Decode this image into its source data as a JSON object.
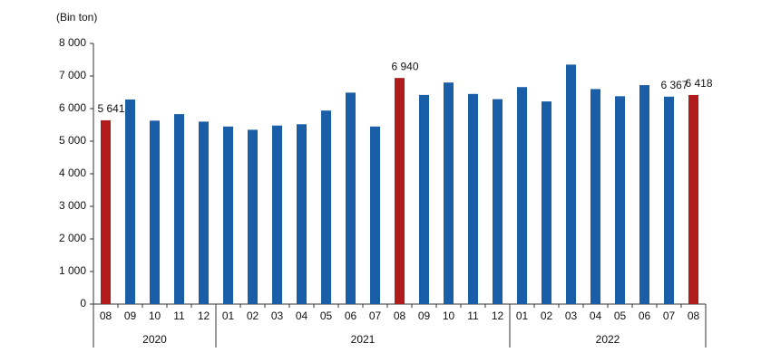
{
  "chart_data": {
    "type": "bar",
    "y_label": "(Bin ton)",
    "groups": [
      {
        "label": "2020",
        "categories": [
          "08",
          "09",
          "10",
          "11",
          "12"
        ]
      },
      {
        "label": "2021",
        "categories": [
          "01",
          "02",
          "03",
          "04",
          "05",
          "06",
          "07",
          "08",
          "09",
          "10",
          "11",
          "12"
        ]
      },
      {
        "label": "2022",
        "categories": [
          "01",
          "02",
          "03",
          "04",
          "05",
          "06",
          "07",
          "08"
        ]
      }
    ],
    "values": [
      5641,
      6280,
      5630,
      5830,
      5600,
      5450,
      5350,
      5480,
      5520,
      5940,
      6490,
      5450,
      6940,
      6420,
      6800,
      6450,
      6290,
      6660,
      6220,
      7350,
      6600,
      6380,
      6720,
      6367,
      6418
    ],
    "value_labels": [
      "5 641",
      null,
      null,
      null,
      null,
      null,
      null,
      null,
      null,
      null,
      null,
      null,
      "6 940",
      null,
      null,
      null,
      null,
      null,
      null,
      null,
      null,
      null,
      null,
      "6 367",
      "6 418"
    ],
    "colors": [
      "#b01c1c",
      "#1b5ea8",
      "#1b5ea8",
      "#1b5ea8",
      "#1b5ea8",
      "#1b5ea8",
      "#1b5ea8",
      "#1b5ea8",
      "#1b5ea8",
      "#1b5ea8",
      "#1b5ea8",
      "#1b5ea8",
      "#b01c1c",
      "#1b5ea8",
      "#1b5ea8",
      "#1b5ea8",
      "#1b5ea8",
      "#1b5ea8",
      "#1b5ea8",
      "#1b5ea8",
      "#1b5ea8",
      "#1b5ea8",
      "#1b5ea8",
      "#1b5ea8",
      "#b01c1c"
    ],
    "ylim": [
      0,
      8000
    ],
    "yticks": [
      0,
      {
        "value": 1000,
        "label": "1 000"
      },
      {
        "value": 2000,
        "label": "2 000"
      },
      {
        "value": 3000,
        "label": "3 000"
      },
      {
        "value": 4000,
        "label": "4 000"
      },
      {
        "value": 5000,
        "label": "5 000"
      },
      {
        "value": 6000,
        "label": "6 000"
      },
      {
        "value": 7000,
        "label": "7 000"
      },
      {
        "value": 8000,
        "label": "8 000"
      }
    ],
    "grid": false
  }
}
